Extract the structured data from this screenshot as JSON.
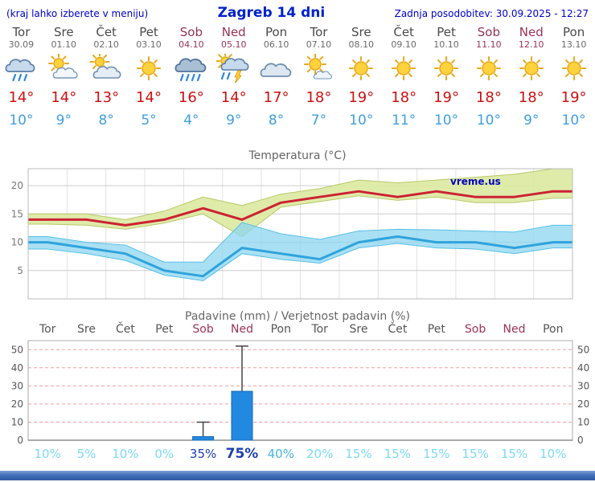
{
  "header": {
    "left_note": "(kraj lahko izberete v meniju)",
    "title": "Zagreb 14 dni",
    "updated": "Zadnja posodobitev: 30.09.2025 - 12:27"
  },
  "colors": {
    "accent_blue": "#0000cc",
    "weekend_text": "#993355",
    "weekday_text": "#555555",
    "tmax_red": "#cc2233",
    "tmin_blue": "#2fa3dc",
    "bar_blue": "#2289e0",
    "band_green": "#dce9a0",
    "band_blue": "#8ed5f0"
  },
  "days": [
    {
      "name": "Tor",
      "date": "30.09",
      "weekend": false,
      "icon": "rain",
      "tmax": "14°",
      "tmin": "10°"
    },
    {
      "name": "Sre",
      "date": "01.10",
      "weekend": false,
      "icon": "partly-cloudy",
      "tmax": "14°",
      "tmin": "9°"
    },
    {
      "name": "Čet",
      "date": "02.10",
      "weekend": false,
      "icon": "mostly-cloudy",
      "tmax": "13°",
      "tmin": "8°"
    },
    {
      "name": "Pet",
      "date": "03.10",
      "weekend": false,
      "icon": "sunny",
      "tmax": "14°",
      "tmin": "5°"
    },
    {
      "name": "Sob",
      "date": "04.10",
      "weekend": true,
      "icon": "heavy-rain",
      "tmax": "16°",
      "tmin": "4°"
    },
    {
      "name": "Ned",
      "date": "05.10",
      "weekend": true,
      "icon": "thunder-rain",
      "tmax": "14°",
      "tmin": "9°"
    },
    {
      "name": "Pon",
      "date": "06.10",
      "weekend": false,
      "icon": "cloudy",
      "tmax": "17°",
      "tmin": "8°"
    },
    {
      "name": "Tor",
      "date": "07.10",
      "weekend": false,
      "icon": "mostly-sunny",
      "tmax": "18°",
      "tmin": "7°"
    },
    {
      "name": "Sre",
      "date": "08.10",
      "weekend": false,
      "icon": "sunny",
      "tmax": "19°",
      "tmin": "10°"
    },
    {
      "name": "Čet",
      "date": "09.10",
      "weekend": false,
      "icon": "sunny",
      "tmax": "18°",
      "tmin": "11°"
    },
    {
      "name": "Pet",
      "date": "10.10",
      "weekend": false,
      "icon": "sunny",
      "tmax": "19°",
      "tmin": "10°"
    },
    {
      "name": "Sob",
      "date": "11.10",
      "weekend": true,
      "icon": "sunny",
      "tmax": "18°",
      "tmin": "10°"
    },
    {
      "name": "Ned",
      "date": "12.10",
      "weekend": true,
      "icon": "sunny",
      "tmax": "18°",
      "tmin": "9°"
    },
    {
      "name": "Pon",
      "date": "13.10",
      "weekend": false,
      "icon": "sunny",
      "tmax": "19°",
      "tmin": "10°"
    }
  ],
  "chart_data": [
    {
      "type": "area",
      "title": "Temperatura (°C)",
      "watermark": "vreme.us",
      "x_labels": [
        "Tor",
        "Sre",
        "Čet",
        "Pet",
        "Sob",
        "Ned",
        "Pon",
        "Tor",
        "Sre",
        "Čet",
        "Pet",
        "Sob",
        "Ned",
        "Pon"
      ],
      "ylim": [
        0,
        23
      ],
      "yticks": [
        5,
        10,
        15,
        20
      ],
      "grid": true,
      "series": [
        {
          "name": "tmax_range_upper",
          "values": [
            15,
            15,
            14,
            15.5,
            18,
            16.5,
            18.5,
            19.5,
            21,
            20.5,
            21,
            21.5,
            22,
            23
          ]
        },
        {
          "name": "tmax",
          "values": [
            14,
            14,
            13,
            14,
            16,
            14,
            17,
            18,
            19,
            18,
            19,
            18,
            18,
            19
          ]
        },
        {
          "name": "tmax_range_lower",
          "values": [
            13.2,
            13,
            12.3,
            13.4,
            15,
            11,
            16.2,
            17.2,
            18.2,
            17.4,
            18,
            17,
            17,
            17.8
          ]
        },
        {
          "name": "tmin_range_upper",
          "values": [
            11,
            10,
            9.5,
            6.5,
            6.5,
            13.5,
            11.5,
            10.5,
            12,
            12.3,
            12.2,
            12,
            11.8,
            13
          ]
        },
        {
          "name": "tmin",
          "values": [
            10,
            9,
            8,
            5,
            4,
            9,
            8,
            7,
            10,
            11,
            10,
            10,
            9,
            10
          ]
        },
        {
          "name": "tmin_range_lower",
          "values": [
            8.8,
            8,
            6.8,
            4.2,
            3.2,
            8,
            7,
            6.3,
            9,
            9.8,
            9,
            8.8,
            8,
            9
          ]
        }
      ]
    },
    {
      "type": "bar",
      "title": "Padavine (mm) / Verjetnost padavin (%)",
      "x_labels": [
        "Tor",
        "Sre",
        "Čet",
        "Pet",
        "Sob",
        "Ned",
        "Pon",
        "Tor",
        "Sre",
        "Čet",
        "Pet",
        "Sob",
        "Ned",
        "Pon"
      ],
      "ylim": [
        0,
        55
      ],
      "yticks": [
        0,
        10,
        20,
        30,
        40,
        50
      ],
      "values": [
        0,
        0,
        0,
        0,
        2,
        27,
        0,
        0,
        0,
        0,
        0,
        0,
        0,
        0
      ],
      "whisker_max": [
        0,
        0,
        0,
        0,
        10,
        52,
        0,
        0,
        0,
        0,
        0,
        0,
        0,
        0
      ],
      "probabilities": [
        {
          "text": "10%",
          "level": "low"
        },
        {
          "text": "5%",
          "level": "low"
        },
        {
          "text": "10%",
          "level": "low"
        },
        {
          "text": "0%",
          "level": "low"
        },
        {
          "text": "35%",
          "level": "high"
        },
        {
          "text": "75%",
          "level": "strong"
        },
        {
          "text": "40%",
          "level": "mid"
        },
        {
          "text": "20%",
          "level": "low"
        },
        {
          "text": "15%",
          "level": "low"
        },
        {
          "text": "15%",
          "level": "low"
        },
        {
          "text": "15%",
          "level": "low"
        },
        {
          "text": "15%",
          "level": "low"
        },
        {
          "text": "15%",
          "level": "low"
        },
        {
          "text": "10%",
          "level": "low"
        }
      ]
    }
  ]
}
